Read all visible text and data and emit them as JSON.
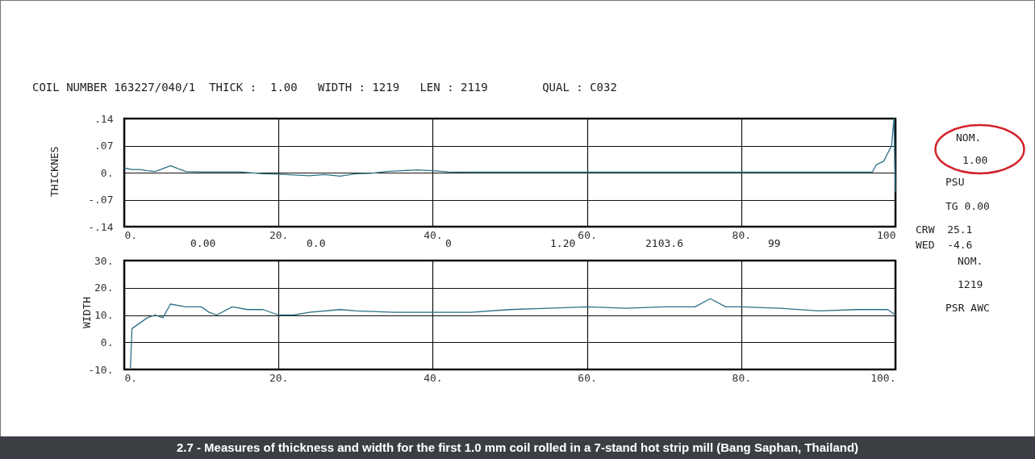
{
  "chart_data": [
    {
      "type": "line",
      "title": "COIL NUMBER 163227/040/1  THICK :  1.00   WIDTH : 1219   LEN : 2119        QUAL : C032",
      "ylabel": "THICKNES",
      "annotations": [
        "0.00",
        "0.0",
        "0",
        "1.20",
        "2103.6",
        "99",
        "NOM.",
        "1.00",
        "PSU",
        "TG 0.00",
        "CRW  25.1",
        "WED  -4.6"
      ],
      "series": [
        {
          "color": "#2b7184",
          "x": [
            0,
            1,
            2,
            3,
            4,
            5,
            6,
            7,
            8,
            10,
            15,
            18,
            20,
            22,
            24,
            26,
            28,
            30,
            32,
            34,
            36,
            38,
            40,
            42,
            45,
            50,
            60,
            70,
            80,
            90,
            97,
            97.5,
            98.5,
            99,
            99.5,
            99.8,
            100
          ],
          "values": [
            0.012,
            0.008,
            0.008,
            0.005,
            0.003,
            0.01,
            0.018,
            0.01,
            0.003,
            0.002,
            0.002,
            -0.003,
            -0.004,
            -0.006,
            -0.008,
            -0.005,
            -0.009,
            -0.003,
            -0.002,
            0.003,
            0.005,
            0.007,
            0.005,
            0.002,
            0.001,
            0.001,
            0.001,
            0.001,
            0.001,
            0.001,
            0.001,
            0.02,
            0.03,
            0.05,
            0.07,
            0.14,
            -0.05
          ]
        }
      ],
      "xlim": [
        0,
        100
      ],
      "xticks": [
        {
          "value": 0,
          "label": "0."
        },
        {
          "value": 20,
          "label": "20."
        },
        {
          "value": 40,
          "label": "40."
        },
        {
          "value": 60,
          "label": "60."
        },
        {
          "value": 80,
          "label": "80."
        },
        {
          "value": 100,
          "label": "100"
        }
      ],
      "ylim": [
        -0.14,
        0.14
      ],
      "yticks": [
        {
          "value": 0.14,
          "label": ".14"
        },
        {
          "value": 0.07,
          "label": ".07"
        },
        {
          "value": 0,
          "label": "0."
        },
        {
          "value": -0.07,
          "label": "-.07"
        },
        {
          "value": -0.14,
          "label": "-.14"
        }
      ],
      "grid": true
    },
    {
      "type": "line",
      "ylabel": "WIDTH",
      "annotations": [
        "NOM.",
        "1219",
        "PSR AWC",
        "2.7 - Measures of thickness and width for the first 1.0 mm coil rolled in a 7-stand hot strip mill (Bang Saphan, Thailand)"
      ],
      "series": [
        {
          "color": "#2b7184",
          "x": [
            0.8,
            1,
            2,
            3,
            4,
            5,
            6,
            8,
            10,
            11,
            12,
            14,
            16,
            18,
            20,
            22,
            24,
            28,
            30,
            35,
            40,
            45,
            50,
            55,
            60,
            65,
            70,
            74,
            76,
            78,
            80,
            85,
            90,
            95,
            99,
            100
          ],
          "values": [
            -10,
            5,
            7,
            9,
            10,
            9,
            14,
            13,
            13,
            11,
            10,
            13,
            12,
            12,
            10,
            10,
            11,
            12,
            11.5,
            11,
            11,
            11,
            12,
            12.5,
            13,
            12.5,
            13,
            13,
            16,
            13,
            13,
            12.5,
            11.5,
            12,
            12,
            10
          ]
        }
      ],
      "xlim": [
        0,
        100
      ],
      "xticks": [
        {
          "value": 0,
          "label": "0."
        },
        {
          "value": 20,
          "label": "20."
        },
        {
          "value": 40,
          "label": "40."
        },
        {
          "value": 60,
          "label": "60."
        },
        {
          "value": 80,
          "label": "80."
        },
        {
          "value": 100,
          "label": "100."
        }
      ],
      "ylim": [
        -10,
        30
      ],
      "yticks": [
        {
          "value": 30,
          "label": "30."
        },
        {
          "value": 20,
          "label": "20."
        },
        {
          "value": 10,
          "label": "10."
        },
        {
          "value": 0,
          "label": "0."
        },
        {
          "value": -10,
          "label": "-10."
        }
      ],
      "grid": true
    }
  ]
}
